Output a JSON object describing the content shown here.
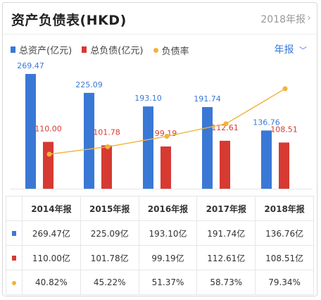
{
  "header": {
    "title": "资产负债表(HKD)",
    "year_link": "2018年报",
    "chevron": "chevron-right-icon"
  },
  "legend": {
    "assets": "总资产(亿元)",
    "liabilities": "总负债(亿元)",
    "ratio": "负债率"
  },
  "period_selector": {
    "label": "年报",
    "icon": "chevron-down-icon"
  },
  "colors": {
    "assets": "#3a78d6",
    "liabilities": "#d63a32",
    "ratio": "#f0b43a"
  },
  "chart_data": {
    "type": "bar",
    "categories": [
      "2014年报",
      "2015年报",
      "2016年报",
      "2017年报",
      "2018年报"
    ],
    "series": [
      {
        "name": "总资产(亿元)",
        "values": [
          269.47,
          225.09,
          193.1,
          191.74,
          136.76
        ],
        "labels": [
          "269.47",
          "225.09",
          "193.10",
          "191.74",
          "136.76"
        ]
      },
      {
        "name": "总负债(亿元)",
        "values": [
          110.0,
          101.78,
          99.19,
          112.61,
          108.51
        ],
        "labels": [
          "110.00",
          "101.78",
          "99.19",
          "112.61",
          "108.51"
        ]
      },
      {
        "name": "负债率",
        "type": "line",
        "values": [
          40.82,
          45.22,
          51.37,
          58.73,
          79.34
        ]
      }
    ]
  },
  "table": {
    "headers": [
      "2014年报",
      "2015年报",
      "2016年报",
      "2017年报",
      "2018年报"
    ],
    "rows": [
      {
        "marker": "bar-blue",
        "cells": [
          "269.47亿",
          "225.09亿",
          "193.10亿",
          "191.74亿",
          "136.76亿"
        ]
      },
      {
        "marker": "bar-red",
        "cells": [
          "110.00亿",
          "101.78亿",
          "99.19亿",
          "112.61亿",
          "108.51亿"
        ]
      },
      {
        "marker": "dot-orange",
        "cells": [
          "40.82%",
          "45.22%",
          "51.37%",
          "58.73%",
          "79.34%"
        ]
      }
    ]
  }
}
